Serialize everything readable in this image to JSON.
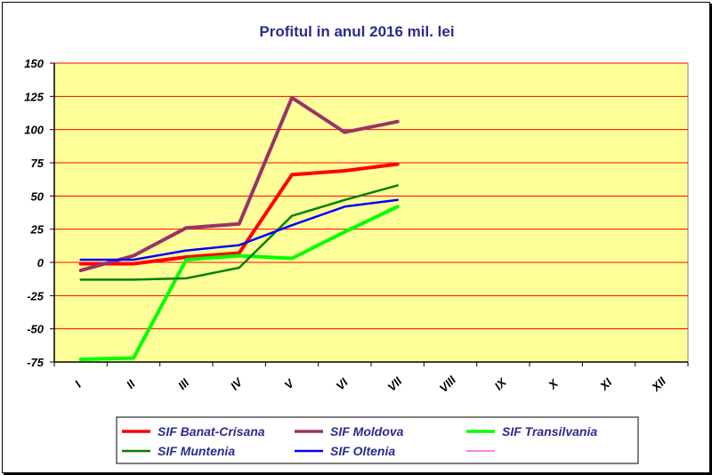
{
  "chart_data": {
    "type": "line",
    "title": "Profitul in anul 2016 mil. lei",
    "xlabel": "",
    "ylabel": "",
    "categories": [
      "I",
      "II",
      "III",
      "IV",
      "V",
      "VI",
      "VII",
      "VIII",
      "IX",
      "X",
      "XI",
      "XII"
    ],
    "ylim": [
      -75,
      150
    ],
    "yticks": [
      -75,
      -50,
      -25,
      0,
      25,
      50,
      75,
      100,
      125,
      150
    ],
    "grid": true,
    "legend_position": "bottom",
    "plot_background": "#ffff99",
    "grid_color": "#ff0000",
    "series": [
      {
        "name": "SIF Banat-Crisana",
        "color": "#ff0000",
        "width": 4,
        "values": [
          -1,
          -1,
          4,
          7,
          66,
          69,
          74,
          null,
          null,
          null,
          null,
          null
        ]
      },
      {
        "name": "SIF Moldova",
        "color": "#993366",
        "width": 4,
        "values": [
          -6,
          5,
          26,
          29,
          124,
          98,
          106,
          null,
          null,
          null,
          null,
          null
        ]
      },
      {
        "name": "SIF Transilvania",
        "color": "#00ff00",
        "width": 4,
        "values": [
          -73,
          -72,
          2,
          5,
          3,
          23,
          42,
          null,
          null,
          null,
          null,
          null
        ]
      },
      {
        "name": "SIF Muntenia",
        "color": "#008000",
        "width": 2.5,
        "values": [
          -13,
          -13,
          -12,
          -4,
          35,
          47,
          58,
          null,
          null,
          null,
          null,
          null
        ]
      },
      {
        "name": "SIF Oltenia",
        "color": "#0000ff",
        "width": 2.5,
        "values": [
          2,
          2,
          9,
          13,
          28,
          42,
          47,
          null,
          null,
          null,
          null,
          null
        ]
      },
      {
        "name": "",
        "color": "#ff00ff",
        "width": 1,
        "values": [
          null,
          null,
          null,
          null,
          null,
          null,
          null,
          null,
          null,
          null,
          null,
          null
        ]
      }
    ]
  }
}
